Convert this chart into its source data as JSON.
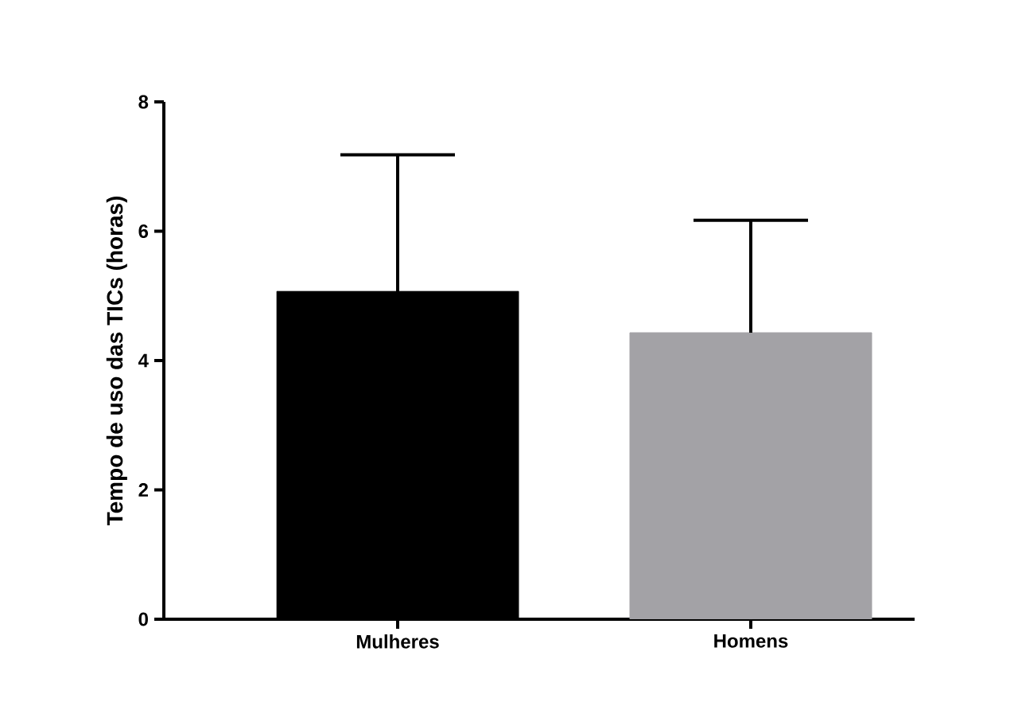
{
  "chart_data": {
    "type": "bar",
    "ylabel": "Tempo de uso das TICs (horas)",
    "categories": [
      "Mulheres",
      "Homens"
    ],
    "values": [
      5.07,
      4.43
    ],
    "colors": [
      "#000000",
      "#a3a2a6"
    ],
    "errors": [
      [
        5.07,
        7.18
      ],
      [
        4.43,
        6.17
      ]
    ],
    "ylim": [
      0,
      8
    ],
    "yticks": [
      0,
      2,
      4,
      6,
      8
    ],
    "grid": false
  }
}
